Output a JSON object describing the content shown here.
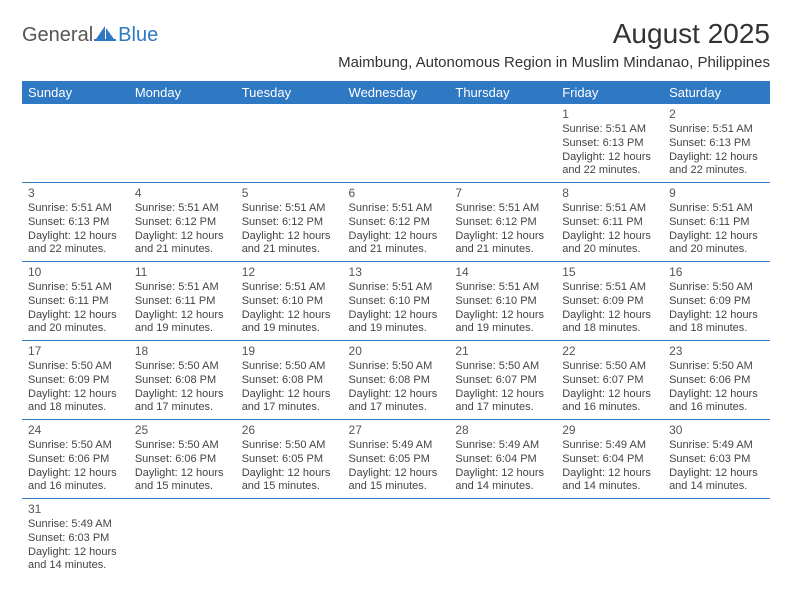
{
  "logo": {
    "part1": "General",
    "part2": "Blue"
  },
  "title": "August 2025",
  "location": "Maimbung, Autonomous Region in Muslim Mindanao, Philippines",
  "colors": {
    "header_bg": "#2f78c4",
    "header_text": "#ffffff",
    "rule": "#2f78c4"
  },
  "dayHeaders": [
    "Sunday",
    "Monday",
    "Tuesday",
    "Wednesday",
    "Thursday",
    "Friday",
    "Saturday"
  ],
  "layout": {
    "firstDayOffset": 5,
    "daysInMonth": 31
  },
  "days": {
    "1": {
      "sunrise": "5:51 AM",
      "sunset": "6:13 PM",
      "daylight": "12 hours and 22 minutes."
    },
    "2": {
      "sunrise": "5:51 AM",
      "sunset": "6:13 PM",
      "daylight": "12 hours and 22 minutes."
    },
    "3": {
      "sunrise": "5:51 AM",
      "sunset": "6:13 PM",
      "daylight": "12 hours and 22 minutes."
    },
    "4": {
      "sunrise": "5:51 AM",
      "sunset": "6:12 PM",
      "daylight": "12 hours and 21 minutes."
    },
    "5": {
      "sunrise": "5:51 AM",
      "sunset": "6:12 PM",
      "daylight": "12 hours and 21 minutes."
    },
    "6": {
      "sunrise": "5:51 AM",
      "sunset": "6:12 PM",
      "daylight": "12 hours and 21 minutes."
    },
    "7": {
      "sunrise": "5:51 AM",
      "sunset": "6:12 PM",
      "daylight": "12 hours and 21 minutes."
    },
    "8": {
      "sunrise": "5:51 AM",
      "sunset": "6:11 PM",
      "daylight": "12 hours and 20 minutes."
    },
    "9": {
      "sunrise": "5:51 AM",
      "sunset": "6:11 PM",
      "daylight": "12 hours and 20 minutes."
    },
    "10": {
      "sunrise": "5:51 AM",
      "sunset": "6:11 PM",
      "daylight": "12 hours and 20 minutes."
    },
    "11": {
      "sunrise": "5:51 AM",
      "sunset": "6:11 PM",
      "daylight": "12 hours and 19 minutes."
    },
    "12": {
      "sunrise": "5:51 AM",
      "sunset": "6:10 PM",
      "daylight": "12 hours and 19 minutes."
    },
    "13": {
      "sunrise": "5:51 AM",
      "sunset": "6:10 PM",
      "daylight": "12 hours and 19 minutes."
    },
    "14": {
      "sunrise": "5:51 AM",
      "sunset": "6:10 PM",
      "daylight": "12 hours and 19 minutes."
    },
    "15": {
      "sunrise": "5:51 AM",
      "sunset": "6:09 PM",
      "daylight": "12 hours and 18 minutes."
    },
    "16": {
      "sunrise": "5:50 AM",
      "sunset": "6:09 PM",
      "daylight": "12 hours and 18 minutes."
    },
    "17": {
      "sunrise": "5:50 AM",
      "sunset": "6:09 PM",
      "daylight": "12 hours and 18 minutes."
    },
    "18": {
      "sunrise": "5:50 AM",
      "sunset": "6:08 PM",
      "daylight": "12 hours and 17 minutes."
    },
    "19": {
      "sunrise": "5:50 AM",
      "sunset": "6:08 PM",
      "daylight": "12 hours and 17 minutes."
    },
    "20": {
      "sunrise": "5:50 AM",
      "sunset": "6:08 PM",
      "daylight": "12 hours and 17 minutes."
    },
    "21": {
      "sunrise": "5:50 AM",
      "sunset": "6:07 PM",
      "daylight": "12 hours and 17 minutes."
    },
    "22": {
      "sunrise": "5:50 AM",
      "sunset": "6:07 PM",
      "daylight": "12 hours and 16 minutes."
    },
    "23": {
      "sunrise": "5:50 AM",
      "sunset": "6:06 PM",
      "daylight": "12 hours and 16 minutes."
    },
    "24": {
      "sunrise": "5:50 AM",
      "sunset": "6:06 PM",
      "daylight": "12 hours and 16 minutes."
    },
    "25": {
      "sunrise": "5:50 AM",
      "sunset": "6:06 PM",
      "daylight": "12 hours and 15 minutes."
    },
    "26": {
      "sunrise": "5:50 AM",
      "sunset": "6:05 PM",
      "daylight": "12 hours and 15 minutes."
    },
    "27": {
      "sunrise": "5:49 AM",
      "sunset": "6:05 PM",
      "daylight": "12 hours and 15 minutes."
    },
    "28": {
      "sunrise": "5:49 AM",
      "sunset": "6:04 PM",
      "daylight": "12 hours and 14 minutes."
    },
    "29": {
      "sunrise": "5:49 AM",
      "sunset": "6:04 PM",
      "daylight": "12 hours and 14 minutes."
    },
    "30": {
      "sunrise": "5:49 AM",
      "sunset": "6:03 PM",
      "daylight": "12 hours and 14 minutes."
    },
    "31": {
      "sunrise": "5:49 AM",
      "sunset": "6:03 PM",
      "daylight": "12 hours and 14 minutes."
    }
  },
  "labels": {
    "sunrise": "Sunrise:",
    "sunset": "Sunset:",
    "daylight": "Daylight:"
  }
}
